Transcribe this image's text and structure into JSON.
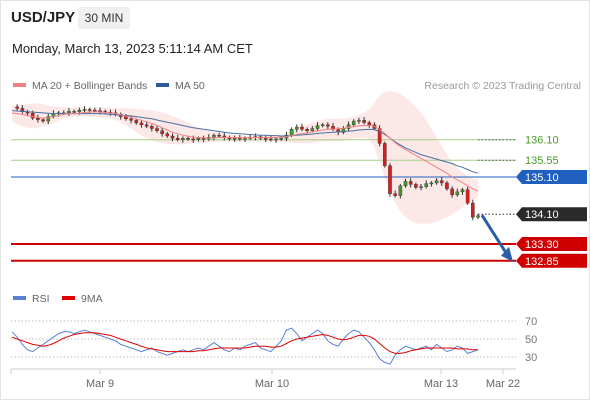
{
  "header": {
    "symbol": "USD/JPY",
    "timeframe": "30 MIN",
    "datetime": "Monday, March 13, 2023 5:11:14 AM CET"
  },
  "price_legend": {
    "ma20_label": "MA 20 + Bollinger Bands",
    "ma50_label": "MA 50",
    "credit": "Research © 2023 Trading Central"
  },
  "rsi_legend": {
    "rsi_label": "RSI",
    "ma_label": "9MA"
  },
  "colors": {
    "price": "#333333",
    "up_candle": "#3f9b2d",
    "down_candle": "#d62020",
    "ma20": "#f08080",
    "ma50": "#4a6fa5",
    "bands": "#fde4e4",
    "support": "#d00000",
    "pivot": "#1f5fbf",
    "resistance": "#a6cf8a",
    "arrow": "#2b5ea8",
    "rsi": "#5b7fd6",
    "rsi_ma": "#e00000"
  },
  "chart_data": [
    {
      "type": "line",
      "x_tick_labels": [
        "Mar 9",
        "Mar 10",
        "Mar 13",
        "Mar 22"
      ],
      "ylim": [
        132.2,
        137.3
      ],
      "price": [
        136.98,
        136.94,
        136.85,
        136.81,
        136.68,
        136.64,
        136.6,
        136.72,
        136.8,
        136.82,
        136.82,
        136.86,
        136.85,
        136.89,
        136.91,
        136.89,
        136.88,
        136.86,
        136.84,
        136.82,
        136.78,
        136.72,
        136.66,
        136.62,
        136.55,
        136.5,
        136.46,
        136.4,
        136.34,
        136.26,
        136.2,
        136.14,
        136.1,
        136.14,
        136.12,
        136.1,
        136.14,
        136.12,
        136.16,
        136.22,
        136.2,
        136.16,
        136.12,
        136.14,
        136.12,
        136.14,
        136.16,
        136.18,
        136.14,
        136.12,
        136.1,
        136.12,
        136.14,
        136.22,
        136.38,
        136.44,
        136.38,
        136.34,
        136.4,
        136.48,
        136.5,
        136.46,
        136.38,
        136.3,
        136.4,
        136.5,
        136.6,
        136.62,
        136.56,
        136.5,
        136.4,
        136.0,
        135.4,
        134.65,
        134.6,
        134.86,
        134.98,
        134.9,
        134.82,
        134.84,
        134.92,
        134.94,
        135.0,
        134.94,
        134.78,
        134.62,
        134.7,
        134.76,
        134.4,
        134.02,
        134.06
      ],
      "last_price": 134.1,
      "ma20": [
        136.82,
        136.8,
        136.78,
        136.75,
        136.72,
        136.7,
        136.68,
        136.69,
        136.72,
        136.75,
        136.78,
        136.8,
        136.8,
        136.81,
        136.83,
        136.84,
        136.85,
        136.84,
        136.83,
        136.82,
        136.8,
        136.77,
        136.73,
        136.7,
        136.66,
        136.62,
        136.58,
        136.54,
        136.48,
        136.42,
        136.36,
        136.3,
        136.26,
        136.22,
        136.19,
        136.17,
        136.16,
        136.15,
        136.14,
        136.15,
        136.16,
        136.16,
        136.16,
        136.16,
        136.15,
        136.15,
        136.15,
        136.16,
        136.16,
        136.16,
        136.16,
        136.16,
        136.17,
        136.18,
        136.21,
        136.24,
        136.26,
        136.28,
        136.31,
        136.34,
        136.36,
        136.38,
        136.38,
        136.39,
        136.41,
        136.43,
        136.45,
        136.47,
        136.48,
        136.48,
        136.46,
        136.38,
        136.27,
        136.14,
        136.02,
        135.92,
        135.84,
        135.76,
        135.68,
        135.6,
        135.52,
        135.44,
        135.36,
        135.28,
        135.2,
        135.1,
        135.02,
        134.95,
        134.86,
        134.78,
        134.72
      ],
      "ma50": [
        136.88,
        136.87,
        136.86,
        136.85,
        136.84,
        136.83,
        136.82,
        136.81,
        136.8,
        136.8,
        136.8,
        136.8,
        136.8,
        136.8,
        136.8,
        136.8,
        136.8,
        136.8,
        136.79,
        136.78,
        136.77,
        136.76,
        136.75,
        136.74,
        136.72,
        136.7,
        136.68,
        136.66,
        136.63,
        136.6,
        136.57,
        136.54,
        136.51,
        136.48,
        136.45,
        136.42,
        136.4,
        136.38,
        136.36,
        136.34,
        136.32,
        136.3,
        136.28,
        136.27,
        136.26,
        136.25,
        136.24,
        136.23,
        136.22,
        136.22,
        136.21,
        136.21,
        136.2,
        136.2,
        136.21,
        136.22,
        136.23,
        136.24,
        136.25,
        136.27,
        136.28,
        136.29,
        136.3,
        136.31,
        136.32,
        136.33,
        136.34,
        136.36,
        136.37,
        136.38,
        136.37,
        136.32,
        136.24,
        136.14,
        136.04,
        135.96,
        135.88,
        135.82,
        135.76,
        135.7,
        135.66,
        135.62,
        135.58,
        135.54,
        135.5,
        135.46,
        135.4,
        135.36,
        135.3,
        135.24,
        135.2
      ],
      "bb_upper": [
        137.02,
        137.03,
        137.04,
        137.06,
        137.08,
        137.08,
        137.05,
        137.02,
        136.99,
        136.98,
        136.97,
        136.97,
        136.96,
        136.96,
        136.96,
        136.96,
        136.96,
        136.96,
        136.96,
        136.96,
        136.95,
        136.95,
        136.94,
        136.94,
        136.93,
        136.92,
        136.9,
        136.89,
        136.86,
        136.83,
        136.79,
        136.74,
        136.68,
        136.62,
        136.55,
        136.49,
        136.43,
        136.38,
        136.33,
        136.3,
        136.28,
        136.26,
        136.24,
        136.23,
        136.22,
        136.21,
        136.2,
        136.21,
        136.21,
        136.21,
        136.22,
        136.22,
        136.24,
        136.27,
        136.34,
        136.42,
        136.47,
        136.52,
        136.56,
        136.6,
        136.63,
        136.66,
        136.66,
        136.66,
        136.67,
        136.69,
        136.72,
        136.76,
        136.82,
        136.92,
        137.1,
        137.28,
        137.38,
        137.4,
        137.38,
        137.32,
        137.24,
        137.12,
        136.98,
        136.82,
        136.62,
        136.4,
        136.16,
        135.92,
        135.7,
        135.5,
        135.34,
        135.22,
        135.12,
        135.06,
        135.02
      ],
      "bb_lower": [
        136.6,
        136.52,
        136.46,
        136.42,
        136.4,
        136.42,
        136.46,
        136.5,
        136.56,
        136.62,
        136.66,
        136.69,
        136.71,
        136.72,
        136.72,
        136.72,
        136.71,
        136.7,
        136.68,
        136.66,
        136.62,
        136.56,
        136.48,
        136.4,
        136.3,
        136.22,
        136.14,
        136.08,
        136.04,
        136.01,
        135.99,
        135.98,
        135.98,
        135.98,
        135.99,
        136.0,
        136.01,
        136.02,
        136.03,
        136.04,
        136.05,
        136.05,
        136.06,
        136.06,
        136.06,
        136.06,
        136.06,
        136.06,
        136.06,
        136.06,
        136.05,
        136.05,
        136.04,
        136.03,
        136.02,
        136.01,
        136.0,
        136.0,
        136.01,
        136.03,
        136.05,
        136.06,
        136.06,
        136.06,
        136.08,
        136.1,
        136.12,
        136.14,
        136.14,
        136.1,
        135.9,
        135.5,
        135.1,
        134.7,
        134.4,
        134.18,
        134.02,
        133.92,
        133.86,
        133.84,
        133.84,
        133.86,
        133.9,
        133.96,
        134.02,
        134.1,
        134.18,
        134.28,
        134.38,
        134.48,
        134.58
      ],
      "levels": [
        {
          "value": 136.1,
          "label": "136.10",
          "type": "resistance"
        },
        {
          "value": 135.55,
          "label": "135.55",
          "type": "resistance"
        },
        {
          "value": 135.1,
          "label": "135.10",
          "type": "pivot"
        },
        {
          "value": 133.3,
          "label": "133.30",
          "type": "support"
        },
        {
          "value": 132.85,
          "label": "132.85",
          "type": "support"
        }
      ],
      "current_price_label": "134.10",
      "forecast_arrow": {
        "from": 134.1,
        "to": 132.85
      }
    },
    {
      "type": "line",
      "ylim": [
        20,
        80
      ],
      "y_tick_labels": [
        "70",
        "50",
        "30"
      ],
      "y_tick_values": [
        70,
        50,
        30
      ],
      "rsi": [
        58,
        52,
        44,
        38,
        36,
        40,
        44,
        48,
        52,
        56,
        58,
        58,
        56,
        58,
        60,
        58,
        56,
        54,
        52,
        50,
        48,
        44,
        42,
        40,
        38,
        36,
        38,
        40,
        36,
        34,
        32,
        34,
        36,
        38,
        36,
        38,
        40,
        38,
        42,
        46,
        42,
        38,
        36,
        40,
        38,
        42,
        44,
        46,
        40,
        38,
        36,
        42,
        48,
        60,
        62,
        56,
        48,
        52,
        56,
        60,
        56,
        48,
        44,
        42,
        50,
        56,
        60,
        58,
        52,
        46,
        38,
        28,
        24,
        22,
        32,
        38,
        42,
        40,
        38,
        40,
        42,
        38,
        44,
        40,
        36,
        38,
        42,
        40,
        34,
        36,
        38
      ],
      "rsi_ma": [
        52,
        50,
        48,
        46,
        44,
        43,
        42,
        43,
        45,
        48,
        51,
        53,
        55,
        56,
        57,
        57,
        57,
        56,
        55,
        54,
        52,
        50,
        48,
        46,
        44,
        42,
        40,
        39,
        38,
        37,
        36,
        36,
        36,
        36,
        36,
        36,
        37,
        37,
        38,
        39,
        40,
        40,
        40,
        40,
        40,
        40,
        41,
        42,
        42,
        42,
        41,
        41,
        42,
        45,
        48,
        50,
        51,
        52,
        53,
        54,
        55,
        54,
        52,
        50,
        49,
        50,
        52,
        54,
        54,
        53,
        50,
        45,
        40,
        36,
        34,
        34,
        35,
        37,
        38,
        39,
        40,
        40,
        40,
        40,
        40,
        40,
        39,
        39,
        39,
        38,
        38
      ]
    }
  ]
}
